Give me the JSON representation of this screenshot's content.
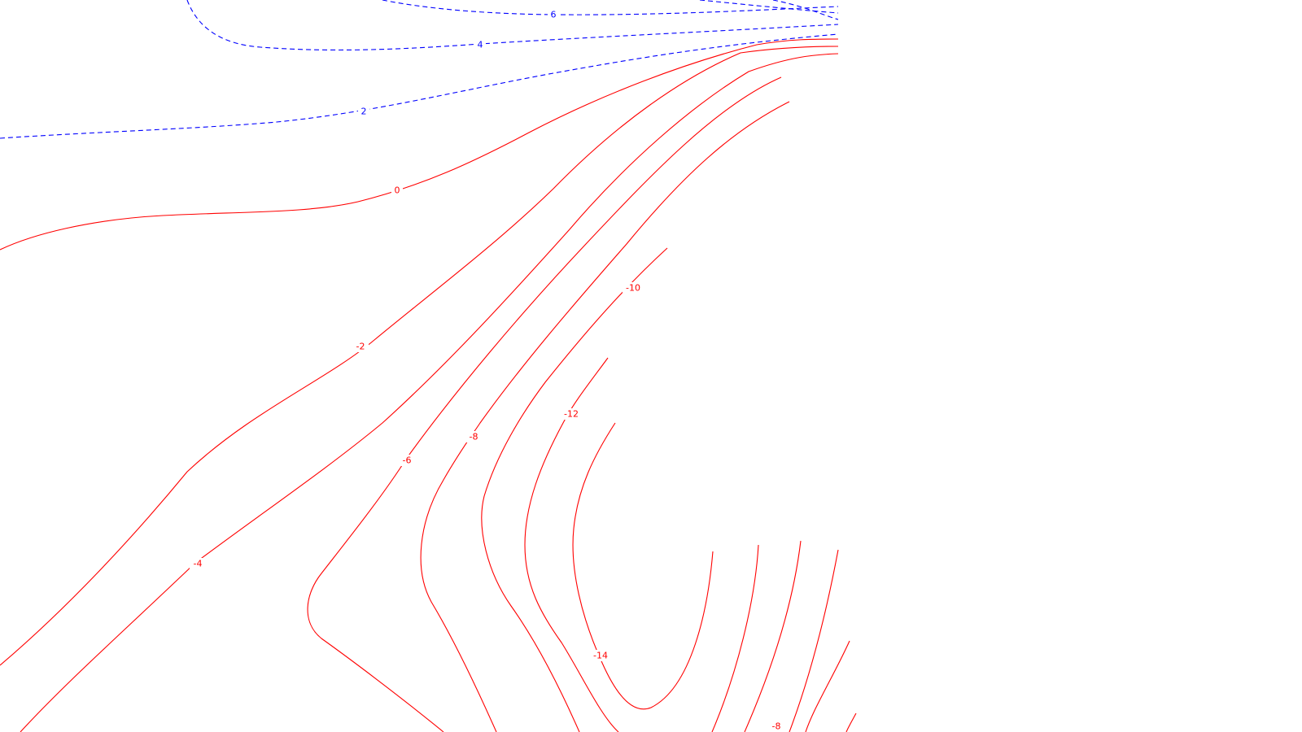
{
  "chart_data": {
    "type": "contour",
    "title": "",
    "xlabel": "",
    "ylabel": "",
    "grid": false,
    "legend": false,
    "colors": {
      "positive": "#0000ff",
      "negative": "#ff0000"
    },
    "positive_style": "dashed",
    "negative_style": "solid",
    "levels": [
      {
        "value": 6,
        "label": "6",
        "sign": "pos"
      },
      {
        "value": 4,
        "label": "4",
        "sign": "pos"
      },
      {
        "value": 2,
        "label": "2",
        "sign": "pos"
      },
      {
        "value": 0,
        "label": "0",
        "sign": "neg"
      },
      {
        "value": -2,
        "label": "-2",
        "sign": "neg"
      },
      {
        "value": -4,
        "label": "-4",
        "sign": "neg"
      },
      {
        "value": -6,
        "label": "-6",
        "sign": "neg"
      },
      {
        "value": -8,
        "label": "-8",
        "sign": "neg"
      },
      {
        "value": -10,
        "label": "-10",
        "sign": "neg"
      },
      {
        "value": -12,
        "label": "-12",
        "sign": "neg"
      },
      {
        "value": -14,
        "label": "-14",
        "sign": "neg"
      },
      {
        "value": -8,
        "label": "-8",
        "sign": "neg"
      }
    ]
  }
}
